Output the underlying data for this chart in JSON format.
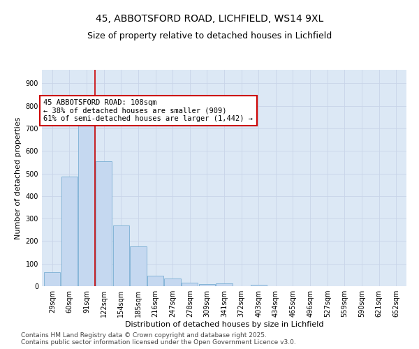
{
  "title": "45, ABBOTSFORD ROAD, LICHFIELD, WS14 9XL",
  "subtitle": "Size of property relative to detached houses in Lichfield",
  "xlabel": "Distribution of detached houses by size in Lichfield",
  "ylabel": "Number of detached properties",
  "categories": [
    "29sqm",
    "60sqm",
    "91sqm",
    "122sqm",
    "154sqm",
    "185sqm",
    "216sqm",
    "247sqm",
    "278sqm",
    "309sqm",
    "341sqm",
    "372sqm",
    "403sqm",
    "434sqm",
    "465sqm",
    "496sqm",
    "527sqm",
    "559sqm",
    "590sqm",
    "621sqm",
    "652sqm"
  ],
  "values": [
    62,
    485,
    730,
    553,
    270,
    175,
    48,
    34,
    15,
    10,
    13,
    0,
    5,
    0,
    0,
    0,
    0,
    0,
    0,
    0,
    0
  ],
  "bar_color": "#c5d8f0",
  "bar_edge_color": "#7aafd4",
  "vline_color": "#cc0000",
  "annotation_text": "45 ABBOTSFORD ROAD: 108sqm\n← 38% of detached houses are smaller (909)\n61% of semi-detached houses are larger (1,442) →",
  "annotation_box_color": "#ffffff",
  "annotation_box_edge_color": "#cc0000",
  "ylim": [
    0,
    960
  ],
  "yticks": [
    0,
    100,
    200,
    300,
    400,
    500,
    600,
    700,
    800,
    900
  ],
  "grid_color": "#c8d4e8",
  "background_color": "#dce8f5",
  "footer_line1": "Contains HM Land Registry data © Crown copyright and database right 2025.",
  "footer_line2": "Contains public sector information licensed under the Open Government Licence v3.0.",
  "title_fontsize": 10,
  "subtitle_fontsize": 9,
  "axis_label_fontsize": 8,
  "tick_fontsize": 7,
  "annotation_fontsize": 7.5,
  "footer_fontsize": 6.5
}
